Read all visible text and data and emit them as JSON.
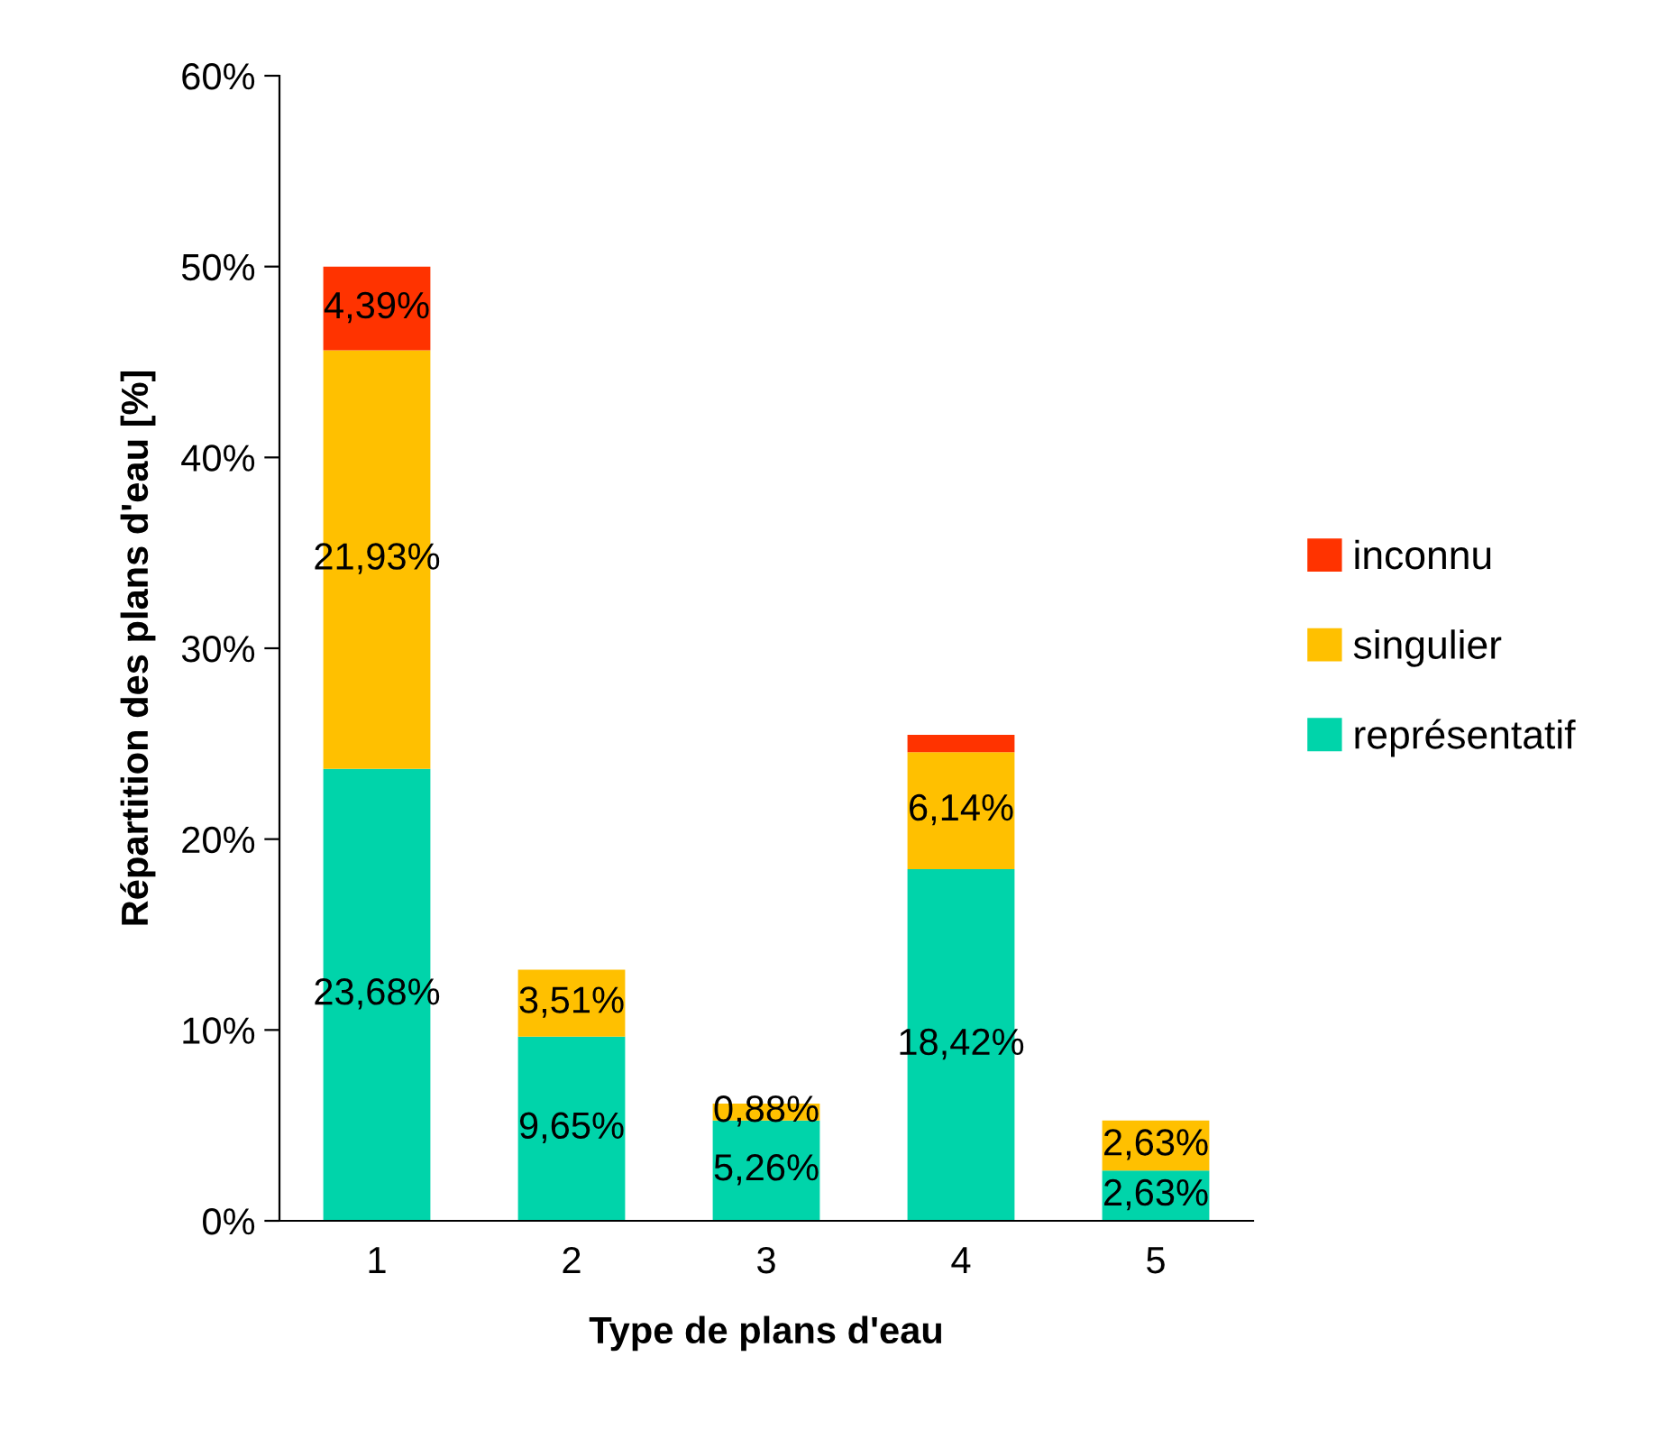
{
  "chart_data": {
    "type": "bar",
    "stacked": true,
    "xlabel": "Type de plans d'eau",
    "ylabel": "Répartition des plans d'eau [%]",
    "categories": [
      "1",
      "2",
      "3",
      "4",
      "5"
    ],
    "series": [
      {
        "name": "représentatif",
        "color": "#00d4aa",
        "values": [
          23.68,
          9.65,
          5.26,
          18.42,
          2.63
        ],
        "value_labels": [
          "23,68%",
          "9,65%",
          "5,26%",
          "18,42%",
          "2,63%"
        ]
      },
      {
        "name": "singulier",
        "color": "#ffc000",
        "values": [
          21.93,
          3.51,
          0.88,
          6.14,
          2.63
        ],
        "value_labels": [
          "21,93%",
          "3,51%",
          "0,88%",
          "6,14%",
          "2,63%"
        ]
      },
      {
        "name": "inconnu",
        "color": "#ff3300",
        "values": [
          4.39,
          null,
          null,
          0.9,
          null
        ],
        "value_labels": [
          "4,39%",
          null,
          null,
          null,
          null
        ]
      }
    ],
    "ylim": [
      0,
      60
    ],
    "yticks": [
      {
        "value": 0,
        "label": "0%"
      },
      {
        "value": 10,
        "label": "10%"
      },
      {
        "value": 20,
        "label": "20%"
      },
      {
        "value": 30,
        "label": "30%"
      },
      {
        "value": 40,
        "label": "40%"
      },
      {
        "value": 50,
        "label": "50%"
      },
      {
        "value": 60,
        "label": "60%"
      }
    ],
    "grid": false,
    "legend": "right"
  }
}
